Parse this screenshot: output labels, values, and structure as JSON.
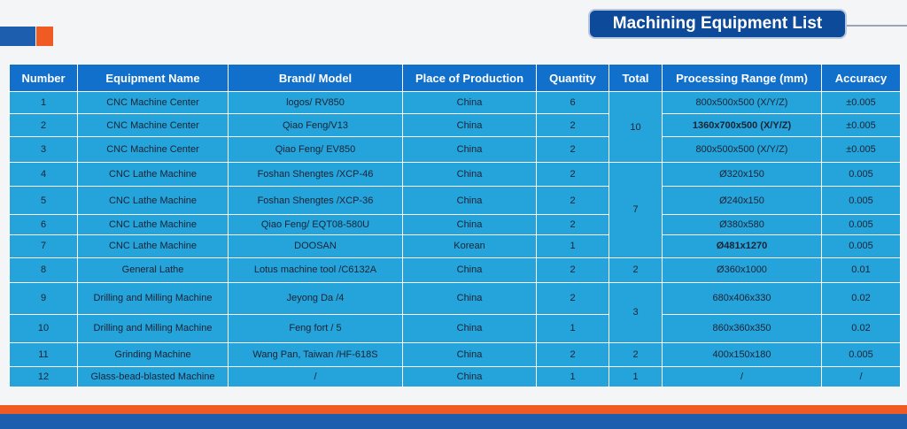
{
  "title": "Machining Equipment List",
  "colors": {
    "header": "#1270cd",
    "cell": "#25a4db",
    "accent_orange": "#f05a23",
    "accent_blue": "#1d5fae"
  },
  "headers": [
    "Number",
    "Equipment Name",
    "Brand/ Model",
    "Place of Production",
    "Quantity",
    "Total",
    "Processing Range (mm)",
    "Accuracy"
  ],
  "rows": [
    {
      "number": "1",
      "name": "CNC Machine Center",
      "model": "logos/ RV850",
      "place": "China",
      "qty": "6",
      "range": "800x500x500 (X/Y/Z)",
      "accuracy": "±0.005"
    },
    {
      "number": "2",
      "name": "CNC Machine Center",
      "model": "Qiao Feng/V13",
      "place": "China",
      "qty": "2",
      "range": "1360x700x500 (X/Y/Z)",
      "accuracy": "±0.005"
    },
    {
      "number": "3",
      "name": "CNC Machine Center",
      "model": "Qiao Feng/ EV850",
      "place": "China",
      "qty": "2",
      "range": "800x500x500 (X/Y/Z)",
      "accuracy": "±0.005"
    },
    {
      "number": "4",
      "name": "CNC Lathe Machine",
      "model": "Foshan Shengtes /XCP-46",
      "place": "China",
      "qty": "2",
      "range": "Ø320x150",
      "accuracy": "0.005"
    },
    {
      "number": "5",
      "name": "CNC Lathe Machine",
      "model": "Foshan Shengtes /XCP-36",
      "place": "China",
      "qty": "2",
      "range": "Ø240x150",
      "accuracy": "0.005"
    },
    {
      "number": "6",
      "name": "CNC Lathe Machine",
      "model": "Qiao Feng/ EQT08-580U",
      "place": "China",
      "qty": "2",
      "range": "Ø380x580",
      "accuracy": "0.005"
    },
    {
      "number": "7",
      "name": "CNC Lathe Machine",
      "model": "DOOSAN",
      "place": "Korean",
      "qty": "1",
      "range": "Ø481x1270",
      "accuracy": "0.005"
    },
    {
      "number": "8",
      "name": "General Lathe",
      "model": "Lotus machine tool /C6132A",
      "place": "China",
      "qty": "2",
      "range": "Ø360x1000",
      "accuracy": "0.01"
    },
    {
      "number": "9",
      "name": "Drilling and Milling Machine",
      "model": "Jeyong Da /4",
      "place": "China",
      "qty": "2",
      "range": "680x406x330",
      "accuracy": "0.02"
    },
    {
      "number": "10",
      "name": "Drilling and Milling Machine",
      "model": "Feng fort / 5",
      "place": "China",
      "qty": "1",
      "range": "860x360x350",
      "accuracy": "0.02"
    },
    {
      "number": "11",
      "name": "Grinding Machine",
      "model": "Wang Pan, Taiwan /HF-618S",
      "place": "China",
      "qty": "2",
      "range": "400x150x180",
      "accuracy": "0.005"
    },
    {
      "number": "12",
      "name": "Glass-bead-blasted Machine",
      "model": "/",
      "place": "China",
      "qty": "1",
      "range": "/",
      "accuracy": "/"
    }
  ],
  "totals": [
    "10",
    "7",
    "2",
    "3",
    "2",
    "1"
  ]
}
